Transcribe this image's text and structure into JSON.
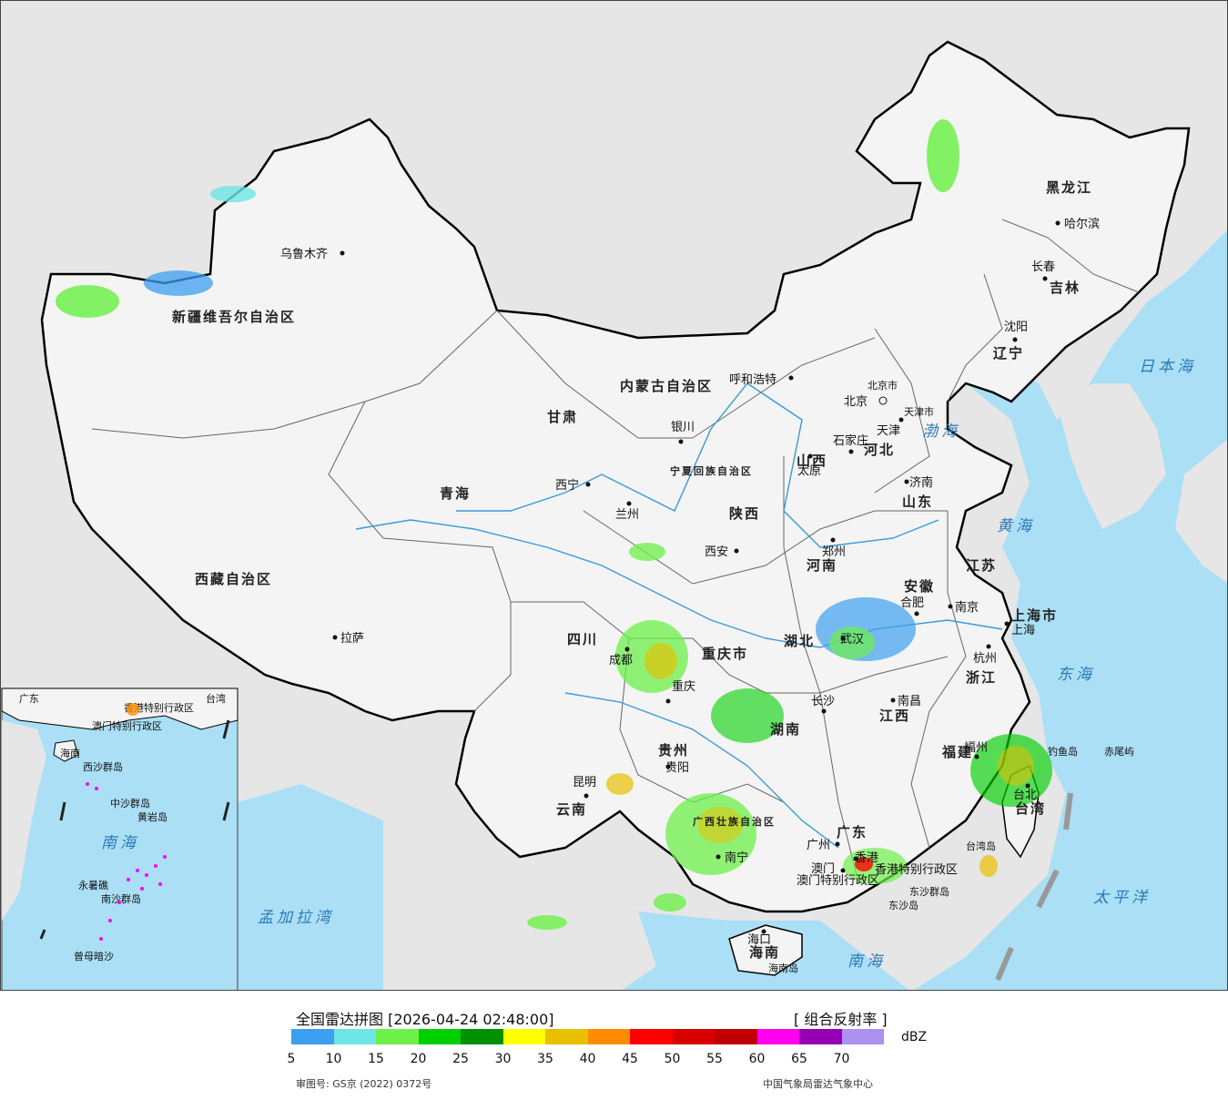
{
  "legend": {
    "title": "全国雷达拼图 [2026-04-24 02:48:00]",
    "product": "[ 组合反射率 ]",
    "unit": "dBZ",
    "colors": [
      "#3d9ff0",
      "#6ee6e6",
      "#6ef04a",
      "#00d000",
      "#009000",
      "#ffff00",
      "#e8c000",
      "#ff8c00",
      "#ff0000",
      "#d80000",
      "#c00000",
      "#ff00f0",
      "#9600b4",
      "#ad90f0"
    ],
    "ticks": [
      "5",
      "10",
      "15",
      "20",
      "25",
      "30",
      "35",
      "40",
      "45",
      "50",
      "55",
      "60",
      "65",
      "70"
    ],
    "approval": "审图号: GS京 (2022) 0372号",
    "source": "中国气象局雷达气象中心"
  },
  "map": {
    "provinces": [
      "新疆维吾尔自治区",
      "西藏自治区",
      "青海",
      "甘肃",
      "内蒙古自治区",
      "黑龙江",
      "吉林",
      "辽宁",
      "河北",
      "山西",
      "陕西",
      "宁夏回族自治区",
      "四川",
      "重庆市",
      "贵州",
      "云南",
      "广西壮族自治区",
      "广东",
      "湖南",
      "湖北",
      "河南",
      "山东",
      "江苏",
      "安徽",
      "浙江",
      "江西",
      "福建",
      "台湾",
      "海南",
      "上海市",
      "北京市",
      "天津市",
      "香港特别行政区",
      "澳门特别行政区"
    ],
    "cities": [
      "乌鲁木齐",
      "拉萨",
      "西宁",
      "兰州",
      "银川",
      "呼和浩特",
      "北京",
      "天津",
      "石家庄",
      "太原",
      "济南",
      "郑州",
      "西安",
      "成都",
      "重庆",
      "贵阳",
      "昆明",
      "南宁",
      "广州",
      "澳门",
      "香港",
      "长沙",
      "武汉",
      "南昌",
      "合肥",
      "南京",
      "上海",
      "杭州",
      "福州",
      "台北",
      "海口",
      "沈阳",
      "长春",
      "哈尔滨"
    ],
    "seas": [
      "渤海",
      "黄海",
      "东海",
      "南海",
      "日本海",
      "太平洋",
      "孟加拉湾"
    ],
    "islands": [
      "东沙群岛",
      "东沙岛",
      "台湾岛",
      "海南岛",
      "钓鱼岛",
      "赤尾屿",
      "西沙群岛",
      "中沙群岛",
      "黄岩岛",
      "南沙群岛",
      "曾母暗沙"
    ],
    "inset_labels": [
      "广东",
      "台湾",
      "香港特别行政区",
      "澳门特别行政区",
      "海南",
      "南海",
      "永暑礁"
    ]
  }
}
